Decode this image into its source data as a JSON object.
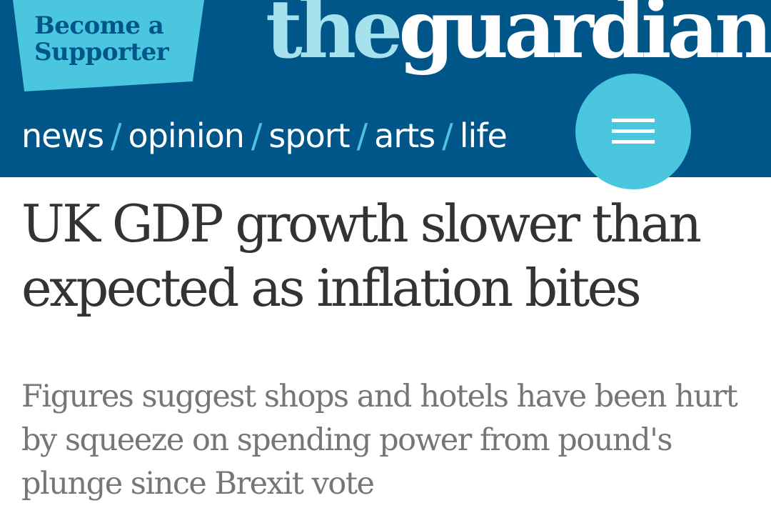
{
  "header": {
    "supporter_cta": "Become a Supporter",
    "logo": {
      "part_the": "the",
      "part_guardian": "guardian"
    },
    "nav": {
      "items": [
        {
          "label": "news"
        },
        {
          "label": "opinion"
        },
        {
          "label": "sport"
        },
        {
          "label": "arts"
        },
        {
          "label": "life"
        }
      ],
      "separator": "/"
    },
    "menu_icon": "hamburger-menu-icon"
  },
  "article": {
    "headline": "UK GDP growth slower than expected as inflation bites",
    "standfirst": "Figures suggest shops and hotels have been hurt by squeeze on spending power from pound's plunge since Brexit vote"
  },
  "colors": {
    "brand_blue": "#005689",
    "accent_cyan": "#4bc6df",
    "logo_light": "#a6e1ee",
    "headline_text": "#333333",
    "standfirst_text": "#767676"
  }
}
